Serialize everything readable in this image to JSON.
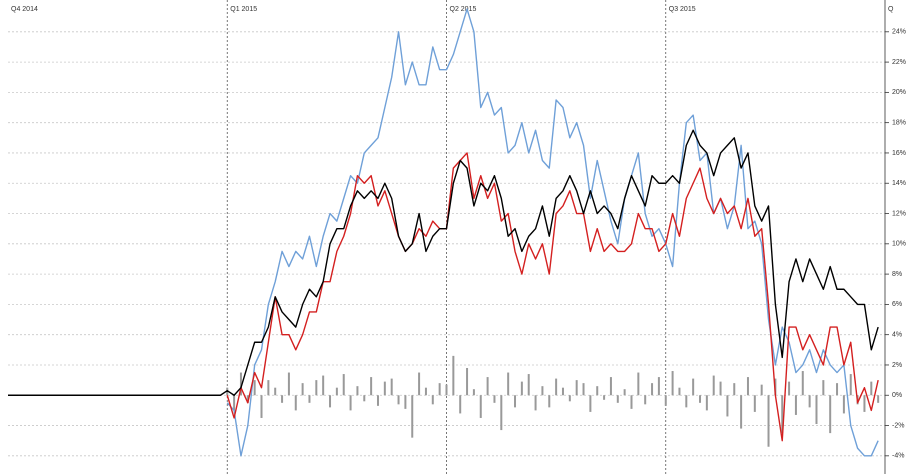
{
  "chart_data": {
    "type": "line",
    "categories": [
      "Q4 2014",
      null,
      null,
      null,
      null,
      null,
      null,
      null,
      null,
      null,
      null,
      null,
      null,
      null,
      null,
      null,
      null,
      null,
      null,
      null,
      null,
      null,
      null,
      null,
      null,
      null,
      null,
      null,
      null,
      null,
      null,
      null,
      "Q1 2015",
      null,
      null,
      null,
      null,
      null,
      null,
      null,
      null,
      null,
      null,
      null,
      null,
      null,
      null,
      null,
      null,
      null,
      null,
      null,
      null,
      null,
      null,
      null,
      null,
      null,
      null,
      null,
      null,
      null,
      null,
      null,
      "Q2 2015",
      null,
      null,
      null,
      null,
      null,
      null,
      null,
      null,
      null,
      null,
      null,
      null,
      null,
      null,
      null,
      null,
      null,
      null,
      null,
      null,
      null,
      null,
      null,
      null,
      null,
      null,
      null,
      null,
      null,
      null,
      null,
      "Q3 2015",
      null,
      null,
      null,
      null,
      null,
      null,
      null,
      null,
      null,
      null,
      null,
      null,
      null,
      null,
      null,
      null,
      null,
      null,
      null,
      null,
      null,
      null,
      null,
      null,
      null,
      null,
      null,
      null,
      null,
      null,
      null,
      "Q"
    ],
    "series": [
      {
        "type": "bar",
        "color": "#999999",
        "values": [
          null,
          null,
          null,
          null,
          null,
          null,
          null,
          null,
          null,
          null,
          null,
          null,
          null,
          null,
          null,
          null,
          null,
          null,
          null,
          null,
          null,
          null,
          null,
          null,
          null,
          null,
          null,
          null,
          null,
          null,
          null,
          null,
          0.5,
          -1,
          1.5,
          -0.5,
          1,
          -1.5,
          1,
          0.5,
          -0.5,
          1.5,
          -1,
          0.8,
          -0.5,
          1,
          1.3,
          -0.8,
          0.5,
          1.4,
          -1,
          0.6,
          -0.4,
          1.2,
          -0.7,
          0.9,
          1.1,
          -0.6,
          -0.9,
          -2.8,
          1.5,
          0.5,
          -0.6,
          0.8,
          0.7,
          2.6,
          -1.2,
          1.8,
          0.4,
          -1.5,
          1.2,
          -0.5,
          -2.3,
          1.5,
          -0.8,
          0.9,
          1.4,
          -1,
          0.6,
          -0.8,
          1.1,
          0.5,
          -0.4,
          1,
          0.8,
          -1.1,
          0.6,
          -0.3,
          1.2,
          -0.5,
          0.4,
          -0.9,
          1.5,
          -0.6,
          0.8,
          1.2,
          -0.7,
          1.6,
          0.5,
          -0.8,
          1.1,
          -0.5,
          -1,
          1.3,
          0.9,
          -1.4,
          0.8,
          -2.2,
          1.2,
          -1.1,
          0.7,
          -3.4,
          1.1,
          -2.5,
          0.9,
          -1.3,
          1.6,
          -0.8,
          -1.9,
          1,
          -2.5,
          0.8,
          -1.2,
          1.4,
          -0.6,
          -1.1,
          0.9,
          -0.5,
          null
        ]
      },
      {
        "type": "line",
        "color": "#6fa0d8",
        "values": [
          null,
          null,
          null,
          null,
          null,
          null,
          null,
          null,
          null,
          null,
          null,
          null,
          null,
          null,
          null,
          null,
          null,
          null,
          null,
          null,
          null,
          null,
          null,
          null,
          null,
          null,
          null,
          null,
          null,
          null,
          null,
          null,
          -0.5,
          -1,
          -4,
          -2,
          2,
          3,
          6,
          7.5,
          9.5,
          8.5,
          9.5,
          9,
          10.5,
          8.5,
          10.5,
          12,
          11.5,
          13,
          14.5,
          14,
          16,
          16.5,
          17,
          19,
          21,
          24,
          20.5,
          22,
          20.5,
          20.5,
          23,
          21.5,
          21.5,
          22.5,
          24,
          25.5,
          24,
          19,
          20,
          18.5,
          19,
          16,
          16.5,
          18,
          16,
          17.5,
          15.5,
          15,
          19.5,
          19,
          17,
          18,
          16.5,
          13,
          15.5,
          13.5,
          11.5,
          10,
          13,
          14.5,
          16,
          12,
          10.5,
          11,
          10,
          8.5,
          14,
          18,
          18.5,
          15.5,
          16,
          12,
          13,
          11,
          12.5,
          16.5,
          11,
          11.5,
          10,
          5,
          2,
          4.5,
          3.5,
          1.5,
          2,
          3,
          1.5,
          3,
          2,
          1.5,
          2,
          -2,
          -3.5,
          -4,
          -4,
          -3,
          null
        ]
      },
      {
        "type": "line",
        "color": "#d42020",
        "values": [
          null,
          null,
          null,
          null,
          null,
          null,
          null,
          null,
          null,
          null,
          null,
          null,
          null,
          null,
          null,
          null,
          null,
          null,
          null,
          null,
          null,
          null,
          null,
          null,
          null,
          null,
          null,
          null,
          null,
          null,
          null,
          null,
          0,
          -1.5,
          0.5,
          -0.5,
          1.5,
          0.5,
          3.5,
          6.5,
          4,
          4,
          3,
          4,
          5.5,
          5.5,
          7.5,
          7.5,
          9.5,
          10.5,
          12,
          14.5,
          14,
          14.5,
          12.5,
          13.5,
          12,
          10.5,
          9.5,
          10,
          11,
          10.5,
          11.5,
          11,
          11,
          15,
          15.5,
          16,
          13,
          14.5,
          13,
          14,
          11.5,
          12,
          9.5,
          8,
          10,
          9,
          10,
          8,
          12,
          12.5,
          13.5,
          12,
          12,
          9.5,
          11,
          9.5,
          10,
          9.5,
          9.5,
          10,
          12,
          11,
          11,
          9.5,
          10,
          12,
          10.5,
          13,
          14,
          15,
          13,
          12,
          13,
          12,
          12.5,
          11,
          13,
          10.5,
          11,
          6,
          0,
          -3,
          4.5,
          4.5,
          3,
          4,
          3,
          2,
          4.5,
          4.5,
          2,
          3.5,
          -0.5,
          0.5,
          -1,
          1,
          null
        ]
      },
      {
        "type": "line",
        "color": "#000000",
        "values": [
          0,
          0,
          0,
          0,
          0,
          0,
          0,
          0,
          0,
          0,
          0,
          0,
          0,
          0,
          0,
          0,
          0,
          0,
          0,
          0,
          0,
          0,
          0,
          0,
          0,
          0,
          0,
          0,
          0,
          0,
          0,
          0,
          0.3,
          0,
          0.5,
          2,
          3.5,
          3.5,
          4.5,
          6.5,
          5.5,
          5,
          4.5,
          6,
          7,
          6.5,
          7.5,
          10,
          11,
          11,
          12.5,
          13.5,
          13,
          13.5,
          13,
          14,
          13,
          10.5,
          9.5,
          10,
          12,
          9.5,
          10.5,
          11,
          11,
          14,
          15.5,
          15,
          12.5,
          14,
          13.5,
          14.5,
          13,
          10.5,
          11,
          9.5,
          10.5,
          11,
          12.5,
          10.5,
          13,
          13.5,
          14.5,
          13.5,
          12,
          13.5,
          12,
          12.5,
          12,
          11,
          13,
          14.5,
          13.5,
          12.5,
          14.5,
          14,
          14,
          14.5,
          14,
          16.5,
          17.5,
          16.5,
          16,
          14.5,
          16,
          16.5,
          17,
          15,
          16,
          12.5,
          11.5,
          12.5,
          6,
          2.5,
          7.5,
          9,
          7.5,
          9,
          8,
          7,
          8.5,
          7,
          7,
          6.5,
          6,
          6,
          3,
          4.5,
          null
        ]
      }
    ],
    "ylim": [
      -5.2,
      26.1
    ],
    "yticks": [
      {
        "value": -4,
        "label": "-4%"
      },
      {
        "value": -2,
        "label": "-2%"
      },
      {
        "value": 0,
        "label": "0%"
      },
      {
        "value": 2,
        "label": "2%"
      },
      {
        "value": 4,
        "label": "4%"
      },
      {
        "value": 6,
        "label": "6%"
      },
      {
        "value": 8,
        "label": "8%"
      },
      {
        "value": 10,
        "label": "10%"
      },
      {
        "value": 12,
        "label": "12%"
      },
      {
        "value": 14,
        "label": "14%"
      },
      {
        "value": 16,
        "label": "16%"
      },
      {
        "value": 18,
        "label": "18%"
      },
      {
        "value": 20,
        "label": "20%"
      },
      {
        "value": 22,
        "label": "22%"
      },
      {
        "value": 24,
        "label": "24%"
      }
    ],
    "grid": true
  }
}
